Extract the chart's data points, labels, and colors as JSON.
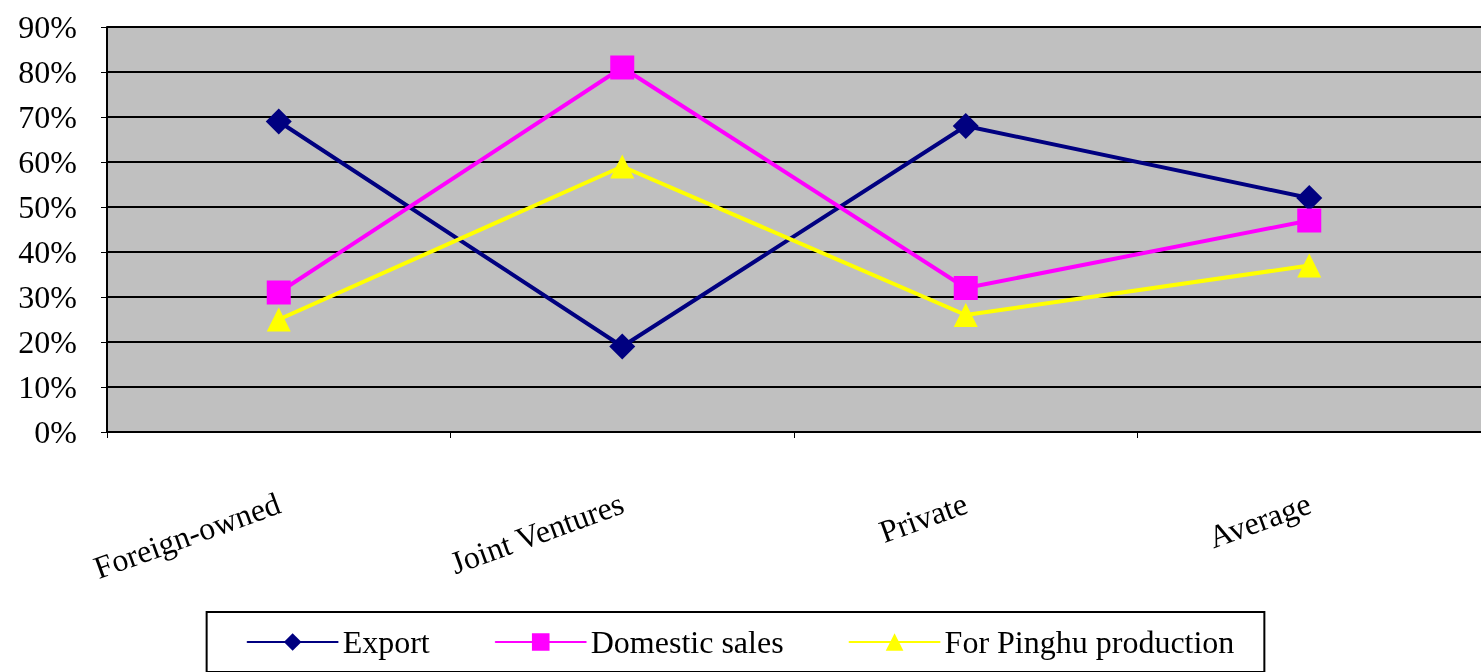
{
  "chart_data": {
    "type": "line",
    "categories": [
      "Foreign-owned",
      "Joint Ventures",
      "Private",
      "Average"
    ],
    "series": [
      {
        "name": "Export",
        "color": "#000080",
        "marker": "diamond",
        "values": [
          69,
          19,
          68,
          52
        ]
      },
      {
        "name": "Domestic sales",
        "color": "#ff00ff",
        "marker": "square",
        "values": [
          31,
          81,
          32,
          47
        ]
      },
      {
        "name": "For Pinghu production",
        "color": "#ffff00",
        "marker": "triangle",
        "values": [
          25,
          59,
          26,
          37
        ]
      }
    ],
    "ylim": [
      0,
      90
    ],
    "yticks": [
      {
        "value": 0,
        "label": "0%"
      },
      {
        "value": 10,
        "label": "10%"
      },
      {
        "value": 20,
        "label": "20%"
      },
      {
        "value": 30,
        "label": "30%"
      },
      {
        "value": 40,
        "label": "40%"
      },
      {
        "value": 50,
        "label": "50%"
      },
      {
        "value": 60,
        "label": "60%"
      },
      {
        "value": 70,
        "label": "70%"
      },
      {
        "value": 80,
        "label": "80%"
      },
      {
        "value": 90,
        "label": "90%"
      }
    ],
    "grid": "y",
    "legend": "bottom",
    "line_style": "solid"
  }
}
